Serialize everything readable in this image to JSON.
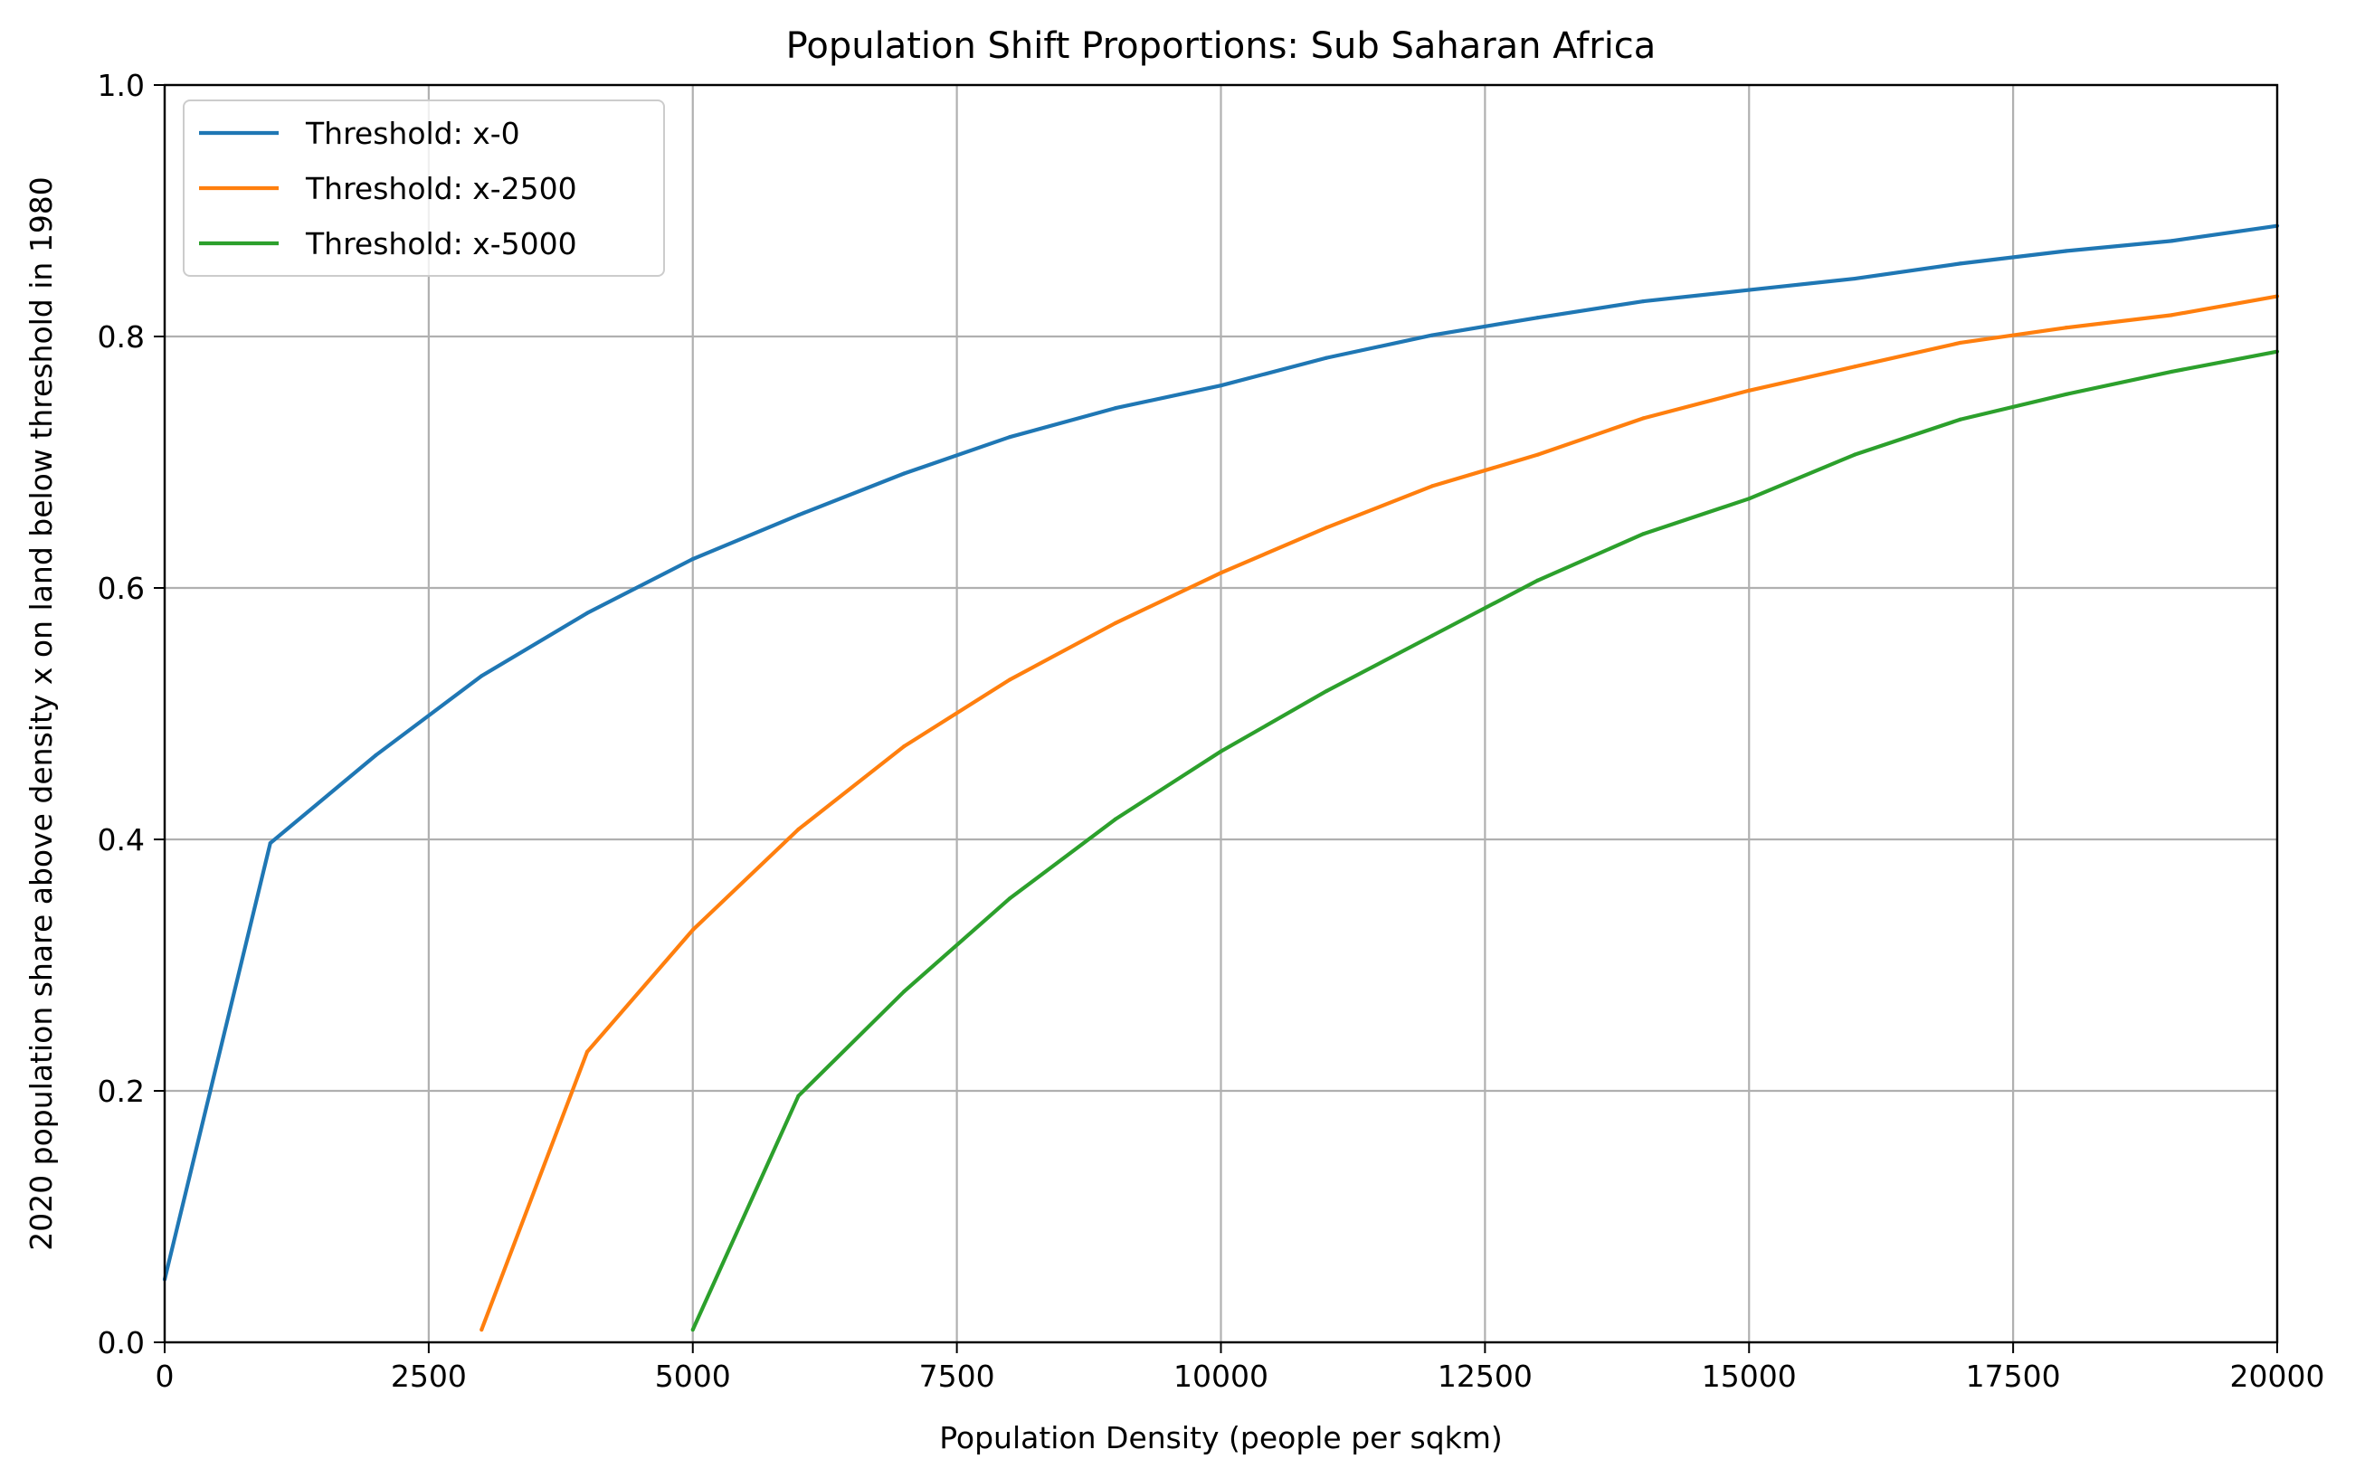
{
  "chart_data": {
    "type": "line",
    "title": "Population Shift Proportions: Sub Saharan Africa",
    "xlabel": "Population Density (people per sqkm)",
    "ylabel": "2020 population share above density x on land below threshold in 1980",
    "xlim": [
      0,
      20000
    ],
    "ylim": [
      0.0,
      1.0
    ],
    "x_ticks": [
      "0",
      "2500",
      "5000",
      "7500",
      "10000",
      "12500",
      "15000",
      "17500",
      "20000"
    ],
    "y_ticks": [
      "0.0",
      "0.2",
      "0.4",
      "0.6",
      "0.8",
      "1.0"
    ],
    "grid": true,
    "legend_position": "upper-left",
    "series": [
      {
        "name": "Threshold: x-0",
        "color": "#1f77b4",
        "points": [
          [
            0,
            0.05
          ],
          [
            1000,
            0.397
          ],
          [
            2000,
            0.467
          ],
          [
            3000,
            0.53
          ],
          [
            4000,
            0.58
          ],
          [
            5000,
            0.623
          ],
          [
            6000,
            0.658
          ],
          [
            7000,
            0.691
          ],
          [
            8000,
            0.72
          ],
          [
            9000,
            0.743
          ],
          [
            10000,
            0.761
          ],
          [
            11000,
            0.783
          ],
          [
            12000,
            0.801
          ],
          [
            13000,
            0.815
          ],
          [
            14000,
            0.828
          ],
          [
            15000,
            0.837
          ],
          [
            16000,
            0.846
          ],
          [
            17000,
            0.858
          ],
          [
            18000,
            0.868
          ],
          [
            19000,
            0.876
          ],
          [
            20000,
            0.888
          ]
        ]
      },
      {
        "name": "Threshold: x-2500",
        "color": "#ff7f0e",
        "points": [
          [
            3000,
            0.01
          ],
          [
            4000,
            0.231
          ],
          [
            5000,
            0.328
          ],
          [
            6000,
            0.408
          ],
          [
            7000,
            0.474
          ],
          [
            8000,
            0.527
          ],
          [
            9000,
            0.572
          ],
          [
            10000,
            0.612
          ],
          [
            11000,
            0.648
          ],
          [
            12000,
            0.681
          ],
          [
            13000,
            0.706
          ],
          [
            14000,
            0.735
          ],
          [
            15000,
            0.757
          ],
          [
            16000,
            0.776
          ],
          [
            17000,
            0.795
          ],
          [
            18000,
            0.807
          ],
          [
            19000,
            0.817
          ],
          [
            20000,
            0.832
          ]
        ]
      },
      {
        "name": "Threshold: x-5000",
        "color": "#2ca02c",
        "points": [
          [
            5000,
            0.01
          ],
          [
            6000,
            0.196
          ],
          [
            7000,
            0.279
          ],
          [
            8000,
            0.353
          ],
          [
            9000,
            0.416
          ],
          [
            10000,
            0.47
          ],
          [
            11000,
            0.518
          ],
          [
            12000,
            0.562
          ],
          [
            13000,
            0.606
          ],
          [
            14000,
            0.643
          ],
          [
            15000,
            0.671
          ],
          [
            16000,
            0.706
          ],
          [
            17000,
            0.734
          ],
          [
            18000,
            0.754
          ],
          [
            19000,
            0.772
          ],
          [
            20000,
            0.788
          ]
        ]
      }
    ]
  }
}
